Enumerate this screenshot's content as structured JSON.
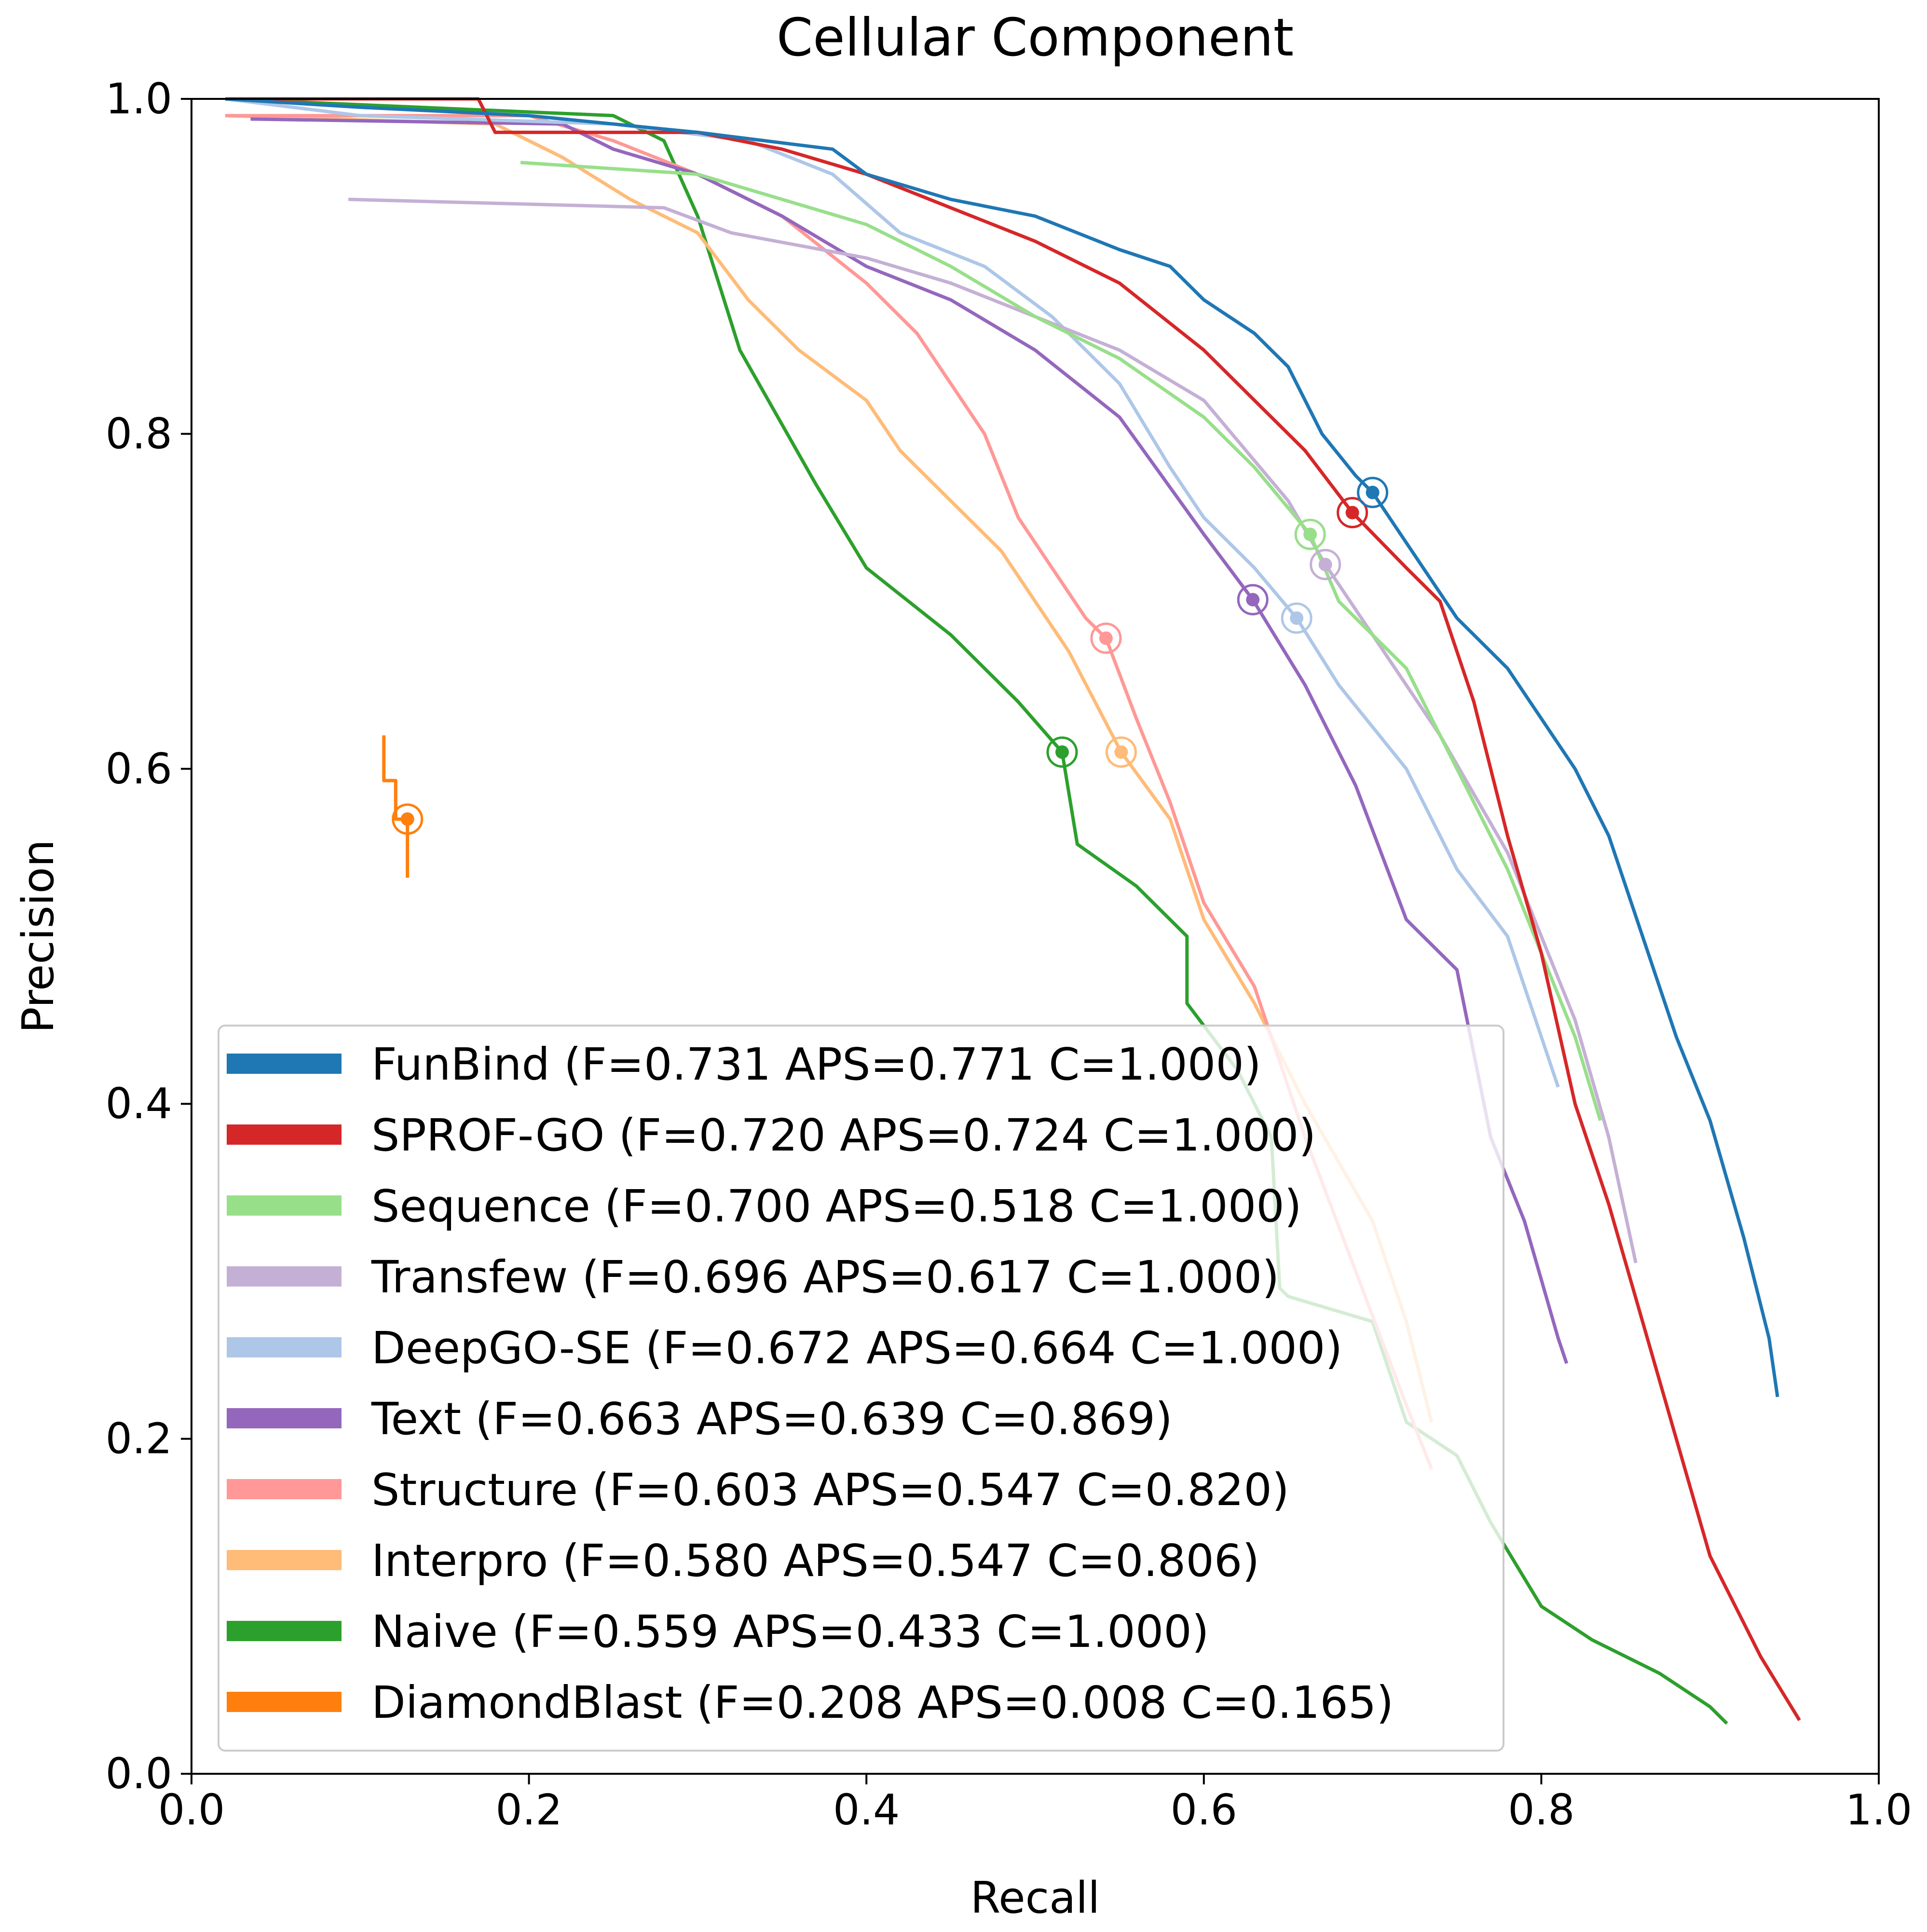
{
  "chart_data": {
    "type": "line",
    "title": "Cellular Component",
    "xlabel": "Recall",
    "ylabel": "Precision",
    "xlim": [
      0,
      1
    ],
    "ylim": [
      0,
      1
    ],
    "xticks": [
      "0.0",
      "0.2",
      "0.4",
      "0.6",
      "0.8",
      "1.0"
    ],
    "yticks": [
      "0.0",
      "0.2",
      "0.4",
      "0.6",
      "0.8",
      "1.0"
    ],
    "grid": false,
    "legend_placement": "lower-left",
    "series": [
      {
        "name": "FunBind",
        "label": "FunBind (F=0.731 APS=0.771 C=1.000)",
        "color": "#1f77b4",
        "marker": [
          0.7,
          0.765
        ],
        "points": [
          [
            0.02,
            1.0
          ],
          [
            0.1,
            0.995
          ],
          [
            0.2,
            0.99
          ],
          [
            0.3,
            0.98
          ],
          [
            0.38,
            0.97
          ],
          [
            0.4,
            0.955
          ],
          [
            0.45,
            0.94
          ],
          [
            0.5,
            0.93
          ],
          [
            0.55,
            0.91
          ],
          [
            0.58,
            0.9
          ],
          [
            0.6,
            0.88
          ],
          [
            0.63,
            0.86
          ],
          [
            0.65,
            0.84
          ],
          [
            0.67,
            0.8
          ],
          [
            0.69,
            0.775
          ],
          [
            0.7,
            0.765
          ],
          [
            0.73,
            0.72
          ],
          [
            0.75,
            0.69
          ],
          [
            0.78,
            0.66
          ],
          [
            0.8,
            0.63
          ],
          [
            0.82,
            0.6
          ],
          [
            0.84,
            0.56
          ],
          [
            0.86,
            0.5
          ],
          [
            0.88,
            0.44
          ],
          [
            0.9,
            0.39
          ],
          [
            0.92,
            0.32
          ],
          [
            0.935,
            0.26
          ],
          [
            0.94,
            0.225
          ]
        ]
      },
      {
        "name": "SPROF-GO",
        "label": "SPROF-GO (F=0.720 APS=0.724 C=1.000)",
        "color": "#d62728",
        "marker": [
          0.688,
          0.753
        ],
        "points": [
          [
            0.02,
            1.0
          ],
          [
            0.17,
            1.0
          ],
          [
            0.18,
            0.98
          ],
          [
            0.3,
            0.98
          ],
          [
            0.35,
            0.97
          ],
          [
            0.4,
            0.955
          ],
          [
            0.45,
            0.935
          ],
          [
            0.5,
            0.915
          ],
          [
            0.55,
            0.89
          ],
          [
            0.6,
            0.85
          ],
          [
            0.63,
            0.82
          ],
          [
            0.66,
            0.79
          ],
          [
            0.688,
            0.753
          ],
          [
            0.72,
            0.72
          ],
          [
            0.74,
            0.7
          ],
          [
            0.76,
            0.64
          ],
          [
            0.78,
            0.56
          ],
          [
            0.8,
            0.49
          ],
          [
            0.82,
            0.4
          ],
          [
            0.84,
            0.34
          ],
          [
            0.86,
            0.27
          ],
          [
            0.88,
            0.2
          ],
          [
            0.9,
            0.13
          ],
          [
            0.93,
            0.07
          ],
          [
            0.953,
            0.032
          ]
        ]
      },
      {
        "name": "Sequence",
        "label": "Sequence (F=0.700 APS=0.518 C=1.000)",
        "color": "#98df8a",
        "marker": [
          0.663,
          0.74
        ],
        "points": [
          [
            0.195,
            0.962
          ],
          [
            0.3,
            0.955
          ],
          [
            0.35,
            0.94
          ],
          [
            0.4,
            0.925
          ],
          [
            0.45,
            0.9
          ],
          [
            0.5,
            0.87
          ],
          [
            0.55,
            0.845
          ],
          [
            0.6,
            0.81
          ],
          [
            0.63,
            0.78
          ],
          [
            0.663,
            0.74
          ],
          [
            0.68,
            0.7
          ],
          [
            0.72,
            0.66
          ],
          [
            0.75,
            0.6
          ],
          [
            0.78,
            0.54
          ],
          [
            0.8,
            0.49
          ],
          [
            0.82,
            0.44
          ],
          [
            0.835,
            0.39
          ]
        ]
      },
      {
        "name": "Transfew",
        "label": "Transfew (F=0.696 APS=0.617 C=1.000)",
        "color": "#c5b0d5",
        "marker": [
          0.672,
          0.722
        ],
        "points": [
          [
            0.093,
            0.94
          ],
          [
            0.28,
            0.935
          ],
          [
            0.32,
            0.92
          ],
          [
            0.4,
            0.905
          ],
          [
            0.45,
            0.89
          ],
          [
            0.5,
            0.87
          ],
          [
            0.55,
            0.85
          ],
          [
            0.6,
            0.82
          ],
          [
            0.65,
            0.76
          ],
          [
            0.672,
            0.722
          ],
          [
            0.7,
            0.68
          ],
          [
            0.74,
            0.62
          ],
          [
            0.78,
            0.55
          ],
          [
            0.82,
            0.45
          ],
          [
            0.84,
            0.38
          ],
          [
            0.856,
            0.305
          ]
        ]
      },
      {
        "name": "DeepGO-SE",
        "label": "DeepGO-SE (F=0.672 APS=0.664 C=1.000)",
        "color": "#aec7e8",
        "marker": [
          0.655,
          0.69
        ],
        "points": [
          [
            0.02,
            1.0
          ],
          [
            0.1,
            0.99
          ],
          [
            0.25,
            0.985
          ],
          [
            0.33,
            0.975
          ],
          [
            0.38,
            0.955
          ],
          [
            0.42,
            0.92
          ],
          [
            0.47,
            0.9
          ],
          [
            0.51,
            0.87
          ],
          [
            0.55,
            0.83
          ],
          [
            0.58,
            0.78
          ],
          [
            0.6,
            0.75
          ],
          [
            0.63,
            0.72
          ],
          [
            0.655,
            0.69
          ],
          [
            0.68,
            0.65
          ],
          [
            0.72,
            0.6
          ],
          [
            0.75,
            0.54
          ],
          [
            0.78,
            0.5
          ],
          [
            0.8,
            0.44
          ],
          [
            0.81,
            0.41
          ]
        ]
      },
      {
        "name": "Text",
        "label": "Text (F=0.663 APS=0.639 C=0.869)",
        "color": "#9467bd",
        "marker": [
          0.629,
          0.701
        ],
        "points": [
          [
            0.035,
            0.988
          ],
          [
            0.22,
            0.985
          ],
          [
            0.25,
            0.97
          ],
          [
            0.3,
            0.955
          ],
          [
            0.35,
            0.93
          ],
          [
            0.4,
            0.9
          ],
          [
            0.45,
            0.88
          ],
          [
            0.5,
            0.85
          ],
          [
            0.55,
            0.81
          ],
          [
            0.6,
            0.74
          ],
          [
            0.629,
            0.701
          ],
          [
            0.66,
            0.65
          ],
          [
            0.69,
            0.59
          ],
          [
            0.72,
            0.51
          ],
          [
            0.75,
            0.48
          ],
          [
            0.77,
            0.38
          ],
          [
            0.79,
            0.33
          ],
          [
            0.81,
            0.26
          ],
          [
            0.815,
            0.245
          ]
        ]
      },
      {
        "name": "Structure",
        "label": "Structure (F=0.603 APS=0.547 C=0.820)",
        "color": "#ff9896",
        "marker": [
          0.542,
          0.678
        ],
        "points": [
          [
            0.02,
            0.99
          ],
          [
            0.2,
            0.99
          ],
          [
            0.25,
            0.975
          ],
          [
            0.3,
            0.955
          ],
          [
            0.35,
            0.93
          ],
          [
            0.4,
            0.89
          ],
          [
            0.43,
            0.86
          ],
          [
            0.45,
            0.83
          ],
          [
            0.47,
            0.8
          ],
          [
            0.49,
            0.75
          ],
          [
            0.51,
            0.72
          ],
          [
            0.53,
            0.69
          ],
          [
            0.542,
            0.678
          ],
          [
            0.56,
            0.63
          ],
          [
            0.58,
            0.58
          ],
          [
            0.6,
            0.52
          ],
          [
            0.63,
            0.47
          ],
          [
            0.66,
            0.38
          ],
          [
            0.69,
            0.3
          ],
          [
            0.72,
            0.22
          ],
          [
            0.735,
            0.182
          ]
        ]
      },
      {
        "name": "Interpro",
        "label": "Interpro (F=0.580 APS=0.547 C=0.806)",
        "color": "#ffbb78",
        "marker": [
          0.551,
          0.61
        ],
        "points": [
          [
            0.02,
            0.99
          ],
          [
            0.18,
            0.985
          ],
          [
            0.22,
            0.965
          ],
          [
            0.26,
            0.94
          ],
          [
            0.3,
            0.92
          ],
          [
            0.33,
            0.88
          ],
          [
            0.36,
            0.85
          ],
          [
            0.4,
            0.82
          ],
          [
            0.42,
            0.79
          ],
          [
            0.45,
            0.76
          ],
          [
            0.48,
            0.73
          ],
          [
            0.5,
            0.7
          ],
          [
            0.52,
            0.67
          ],
          [
            0.551,
            0.61
          ],
          [
            0.58,
            0.57
          ],
          [
            0.6,
            0.51
          ],
          [
            0.63,
            0.46
          ],
          [
            0.66,
            0.4
          ],
          [
            0.7,
            0.33
          ],
          [
            0.72,
            0.27
          ],
          [
            0.735,
            0.21
          ]
        ]
      },
      {
        "name": "Naive",
        "label": "Naive (F=0.559 APS=0.433 C=1.000)",
        "color": "#2ca02c",
        "marker": [
          0.516,
          0.61
        ],
        "points": [
          [
            0.02,
            1.0
          ],
          [
            0.25,
            0.99
          ],
          [
            0.28,
            0.975
          ],
          [
            0.3,
            0.93
          ],
          [
            0.325,
            0.85
          ],
          [
            0.37,
            0.77
          ],
          [
            0.4,
            0.72
          ],
          [
            0.45,
            0.68
          ],
          [
            0.49,
            0.64
          ],
          [
            0.516,
            0.61
          ],
          [
            0.525,
            0.555
          ],
          [
            0.56,
            0.53
          ],
          [
            0.59,
            0.5
          ],
          [
            0.59,
            0.46
          ],
          [
            0.62,
            0.42
          ],
          [
            0.64,
            0.38
          ],
          [
            0.645,
            0.29
          ],
          [
            0.65,
            0.285
          ],
          [
            0.7,
            0.27
          ],
          [
            0.72,
            0.21
          ],
          [
            0.75,
            0.19
          ],
          [
            0.77,
            0.15
          ],
          [
            0.8,
            0.1
          ],
          [
            0.83,
            0.08
          ],
          [
            0.87,
            0.06
          ],
          [
            0.9,
            0.04
          ],
          [
            0.91,
            0.03
          ]
        ]
      },
      {
        "name": "DiamondBlast",
        "label": "DiamondBlast (F=0.208 APS=0.008 C=0.165)",
        "color": "#ff7f0e",
        "marker": [
          0.128,
          0.57
        ],
        "points": [
          [
            0.114,
            0.62
          ],
          [
            0.114,
            0.593
          ],
          [
            0.121,
            0.593
          ],
          [
            0.121,
            0.57
          ],
          [
            0.128,
            0.57
          ],
          [
            0.128,
            0.535
          ]
        ]
      }
    ]
  }
}
